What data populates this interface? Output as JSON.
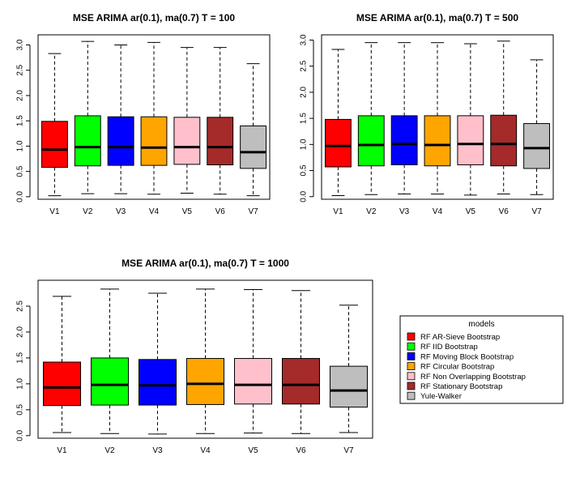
{
  "chart_data": [
    {
      "type": "boxplot",
      "title": "MSE ARIMA ar(0.1), ma(0.7) T = 100",
      "categories": [
        "V1",
        "V2",
        "V3",
        "V4",
        "V5",
        "V6",
        "V7"
      ],
      "y_ticks": [
        "0.0",
        "0.5",
        "1.0",
        "1.5",
        "2.0",
        "2.5",
        "3.0"
      ],
      "ylim": [
        -0.05,
        3.2
      ],
      "boxes": [
        {
          "min": 0.02,
          "q1": 0.58,
          "median": 0.93,
          "q3": 1.49,
          "max": 2.83
        },
        {
          "min": 0.06,
          "q1": 0.61,
          "median": 0.98,
          "q3": 1.6,
          "max": 3.07
        },
        {
          "min": 0.06,
          "q1": 0.62,
          "median": 0.98,
          "q3": 1.58,
          "max": 3.0
        },
        {
          "min": 0.05,
          "q1": 0.62,
          "median": 0.97,
          "q3": 1.58,
          "max": 3.05
        },
        {
          "min": 0.07,
          "q1": 0.64,
          "median": 0.98,
          "q3": 1.57,
          "max": 2.95
        },
        {
          "min": 0.05,
          "q1": 0.63,
          "median": 0.98,
          "q3": 1.57,
          "max": 2.95
        },
        {
          "min": 0.02,
          "q1": 0.56,
          "median": 0.88,
          "q3": 1.4,
          "max": 2.63
        }
      ]
    },
    {
      "type": "boxplot",
      "title": "MSE ARIMA ar(0.1), ma(0.7) T = 500",
      "categories": [
        "V1",
        "V2",
        "V3",
        "V4",
        "V5",
        "V6",
        "V7"
      ],
      "y_ticks": [
        "0.0",
        "0.5",
        "1.0",
        "1.5",
        "2.0",
        "2.5",
        "3.0"
      ],
      "ylim": [
        -0.05,
        3.1
      ],
      "boxes": [
        {
          "min": 0.02,
          "q1": 0.57,
          "median": 0.97,
          "q3": 1.48,
          "max": 2.82
        },
        {
          "min": 0.04,
          "q1": 0.59,
          "median": 0.99,
          "q3": 1.55,
          "max": 2.95
        },
        {
          "min": 0.05,
          "q1": 0.61,
          "median": 1.01,
          "q3": 1.55,
          "max": 2.95
        },
        {
          "min": 0.05,
          "q1": 0.59,
          "median": 0.99,
          "q3": 1.55,
          "max": 2.95
        },
        {
          "min": 0.03,
          "q1": 0.61,
          "median": 1.01,
          "q3": 1.55,
          "max": 2.93
        },
        {
          "min": 0.05,
          "q1": 0.59,
          "median": 1.01,
          "q3": 1.56,
          "max": 2.98
        },
        {
          "min": 0.04,
          "q1": 0.54,
          "median": 0.93,
          "q3": 1.4,
          "max": 2.62
        }
      ]
    },
    {
      "type": "boxplot",
      "title": "MSE ARIMA ar(0.1), ma(0.7) T = 1000",
      "categories": [
        "V1",
        "V2",
        "V3",
        "V4",
        "V5",
        "V6",
        "V7"
      ],
      "y_ticks": [
        "0.0",
        "0.5",
        "1.0",
        "1.5",
        "2.0",
        "2.5"
      ],
      "ylim": [
        -0.05,
        3.0
      ],
      "boxes": [
        {
          "min": 0.06,
          "q1": 0.58,
          "median": 0.93,
          "q3": 1.42,
          "max": 2.69
        },
        {
          "min": 0.04,
          "q1": 0.59,
          "median": 0.98,
          "q3": 1.5,
          "max": 2.83
        },
        {
          "min": 0.03,
          "q1": 0.59,
          "median": 0.97,
          "q3": 1.47,
          "max": 2.75
        },
        {
          "min": 0.04,
          "q1": 0.6,
          "median": 1.0,
          "q3": 1.49,
          "max": 2.83
        },
        {
          "min": 0.05,
          "q1": 0.61,
          "median": 0.98,
          "q3": 1.49,
          "max": 2.82
        },
        {
          "min": 0.04,
          "q1": 0.61,
          "median": 0.98,
          "q3": 1.49,
          "max": 2.8
        },
        {
          "min": 0.06,
          "q1": 0.55,
          "median": 0.87,
          "q3": 1.34,
          "max": 2.52
        }
      ]
    }
  ],
  "legend": {
    "title": "models",
    "items": [
      {
        "label": "RF AR-Sieve Bootstrap",
        "color": "#ff0000"
      },
      {
        "label": "RF IID Bootstrap",
        "color": "#00ff00"
      },
      {
        "label": "RF Moving Block Bootstrap",
        "color": "#0000ff"
      },
      {
        "label": "RF Circular Bootstrap",
        "color": "#ffa500"
      },
      {
        "label": "RF Non Overlapping Bootstrap",
        "color": "#ffc0cb"
      },
      {
        "label": "RF Stationary Bootstrap",
        "color": "#a52a2a"
      },
      {
        "label": "Yule-Walker",
        "color": "#bebebe"
      }
    ]
  }
}
